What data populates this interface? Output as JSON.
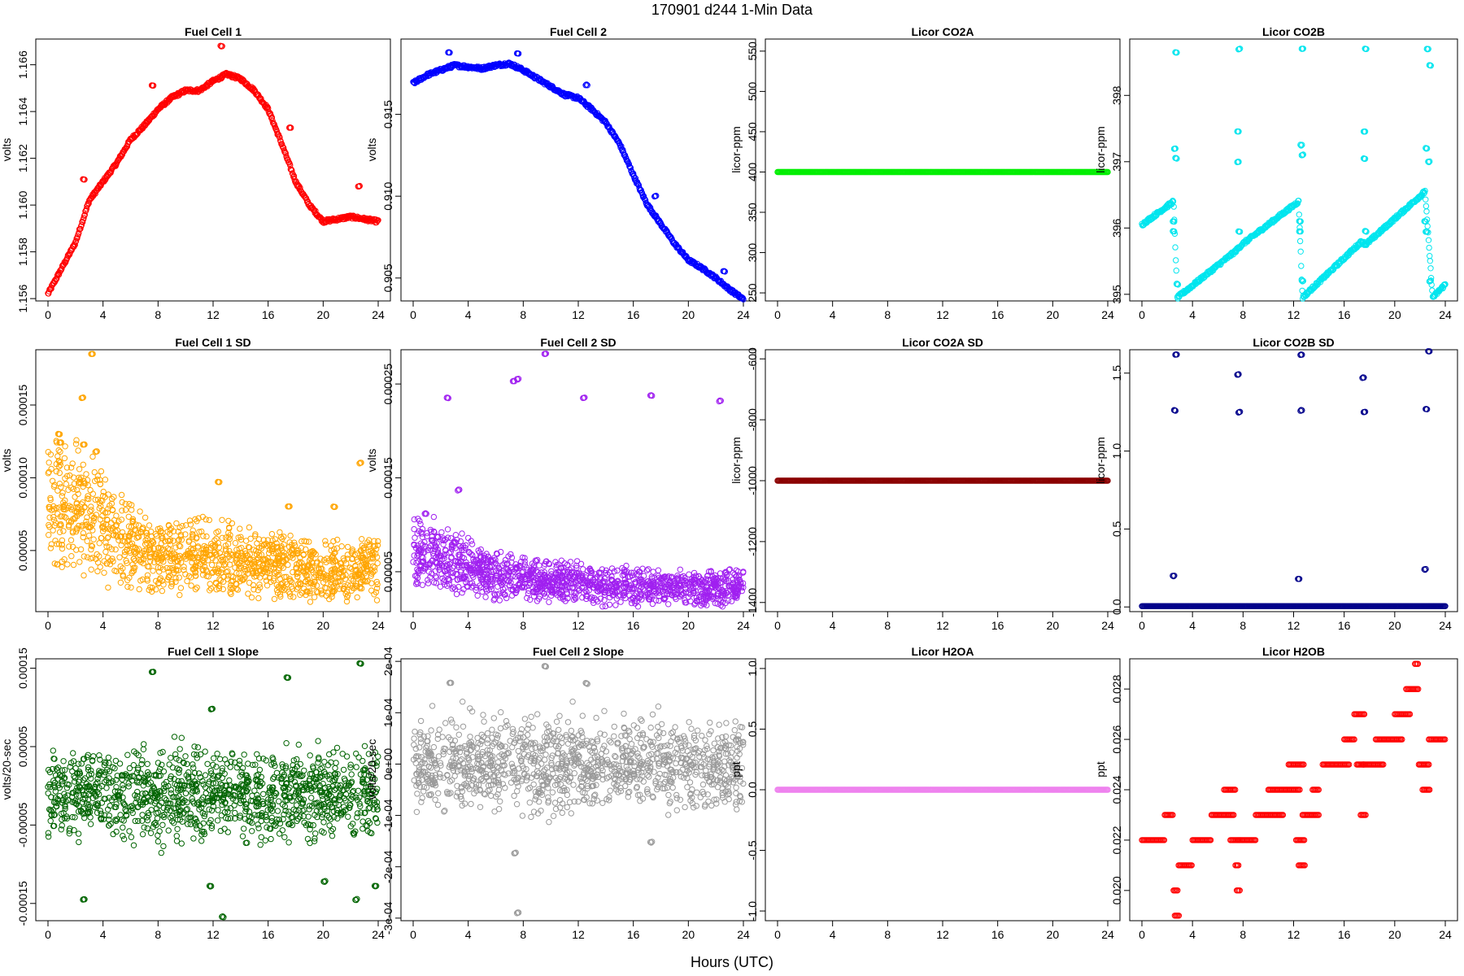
{
  "figure": {
    "title": "170901    d244    1-Min Data",
    "xlabel": "Hours (UTC)"
  },
  "chart_data": [
    {
      "type": "scatter",
      "title": "Fuel Cell 1",
      "ylabel": "volts",
      "color": "#ff0000",
      "xlim": [
        0,
        24
      ],
      "ylim": [
        1.1559,
        1.1671
      ],
      "xticks": [
        "0",
        "4",
        "8",
        "12",
        "16",
        "20",
        "24"
      ],
      "yticks": [
        "1.156",
        "1.158",
        "1.160",
        "1.162",
        "1.164",
        "1.166"
      ],
      "series": [
        {
          "x": [
            0,
            1,
            2,
            3,
            4,
            5,
            6,
            7,
            8,
            9,
            10,
            11,
            12,
            13,
            14,
            15,
            16,
            17,
            18,
            19,
            20,
            21,
            22,
            23,
            24
          ],
          "y": [
            1.1562,
            1.1573,
            1.1584,
            1.1602,
            1.161,
            1.1618,
            1.1628,
            1.1634,
            1.1641,
            1.1646,
            1.1649,
            1.1649,
            1.1653,
            1.1656,
            1.1654,
            1.1649,
            1.1641,
            1.1626,
            1.161,
            1.16,
            1.1593,
            1.1594,
            1.1595,
            1.1594,
            1.1593
          ]
        }
      ],
      "outliers": [
        {
          "x": 2.6,
          "y": 1.1611
        },
        {
          "x": 7.6,
          "y": 1.1651
        },
        {
          "x": 12.6,
          "y": 1.1668
        },
        {
          "x": 17.6,
          "y": 1.1633
        },
        {
          "x": 22.6,
          "y": 1.1608
        }
      ]
    },
    {
      "type": "scatter",
      "title": "Fuel Cell 2",
      "ylabel": "volts",
      "color": "#0000ff",
      "xlim": [
        0,
        24
      ],
      "ylim": [
        0.9036,
        0.9196
      ],
      "xticks": [
        "0",
        "4",
        "8",
        "12",
        "16",
        "20",
        "24"
      ],
      "yticks": [
        "0.905",
        "0.910",
        "0.915"
      ],
      "series": [
        {
          "x": [
            0,
            1,
            2,
            3,
            4,
            5,
            6,
            7,
            8,
            9,
            10,
            11,
            12,
            13,
            14,
            15,
            16,
            17,
            18,
            19,
            20,
            21,
            22,
            23,
            24
          ],
          "y": [
            0.9169,
            0.9174,
            0.9177,
            0.918,
            0.9179,
            0.9178,
            0.918,
            0.9181,
            0.9177,
            0.9172,
            0.9167,
            0.9162,
            0.916,
            0.9153,
            0.9145,
            0.9132,
            0.9113,
            0.9095,
            0.9083,
            0.9071,
            0.9061,
            0.9056,
            0.905,
            0.9043,
            0.9037
          ]
        }
      ],
      "outliers": [
        {
          "x": 2.6,
          "y": 0.9188
        },
        {
          "x": 7.6,
          "y": 0.9187
        },
        {
          "x": 12.6,
          "y": 0.9168
        },
        {
          "x": 17.6,
          "y": 0.91
        },
        {
          "x": 22.6,
          "y": 0.9054
        }
      ]
    },
    {
      "type": "scatter",
      "title": "Licor CO2A",
      "ylabel": "licor-ppm",
      "color": "#00ee00",
      "xlim": [
        0,
        24
      ],
      "ylim": [
        240,
        565
      ],
      "xticks": [
        "0",
        "4",
        "8",
        "12",
        "16",
        "20",
        "24"
      ],
      "yticks": [
        "250",
        "300",
        "350",
        "400",
        "450",
        "500",
        "550"
      ],
      "series": [
        {
          "x": [
            0,
            24
          ],
          "y": [
            400,
            400
          ]
        }
      ]
    },
    {
      "type": "scatter",
      "title": "Licor CO2B",
      "ylabel": "licor-ppm",
      "color": "#00e5ee",
      "xlim": [
        0,
        24
      ],
      "ylim": [
        394.9,
        398.85
      ],
      "xticks": [
        "0",
        "4",
        "8",
        "12",
        "16",
        "20",
        "24"
      ],
      "yticks": [
        "395",
        "396",
        "397",
        "398"
      ],
      "series": [
        {
          "x": [
            0,
            2.5,
            2.8,
            7.4,
            7.9,
            12.4,
            12.7,
            17.4,
            17.7,
            22.4,
            23.0,
            24.0
          ],
          "y": [
            396.05,
            396.4,
            394.95,
            395.65,
            395.75,
            396.4,
            394.95,
            395.8,
            395.75,
            396.55,
            394.95,
            395.15
          ]
        }
      ],
      "outliers": [
        {
          "x": 2.7,
          "y": 398.65
        },
        {
          "x": 7.7,
          "y": 398.7
        },
        {
          "x": 12.7,
          "y": 398.7
        },
        {
          "x": 17.7,
          "y": 398.7
        },
        {
          "x": 22.6,
          "y": 398.7
        },
        {
          "x": 22.8,
          "y": 398.45
        },
        {
          "x": 2.6,
          "y": 397.2
        },
        {
          "x": 2.7,
          "y": 397.05
        },
        {
          "x": 7.6,
          "y": 397.45
        },
        {
          "x": 7.6,
          "y": 397.0
        },
        {
          "x": 12.6,
          "y": 397.25
        },
        {
          "x": 12.7,
          "y": 397.1
        },
        {
          "x": 17.6,
          "y": 397.45
        },
        {
          "x": 17.6,
          "y": 397.05
        },
        {
          "x": 22.5,
          "y": 397.2
        },
        {
          "x": 22.7,
          "y": 397.0
        },
        {
          "x": 2.5,
          "y": 396.1
        },
        {
          "x": 2.5,
          "y": 395.95
        },
        {
          "x": 7.7,
          "y": 395.95
        },
        {
          "x": 12.5,
          "y": 396.1
        },
        {
          "x": 12.5,
          "y": 395.95
        },
        {
          "x": 17.7,
          "y": 395.95
        },
        {
          "x": 22.4,
          "y": 396.1
        },
        {
          "x": 22.5,
          "y": 395.95
        },
        {
          "x": 2.8,
          "y": 395.15
        },
        {
          "x": 12.7,
          "y": 395.2
        },
        {
          "x": 22.8,
          "y": 395.2
        }
      ]
    },
    {
      "type": "scatter",
      "title": "Fuel Cell 1 SD",
      "ylabel": "volts",
      "color": "#ffa500",
      "xlim": [
        0,
        24
      ],
      "ylim": [
        8e-06,
        0.000188
      ],
      "xticks": [
        "0",
        "4",
        "8",
        "12",
        "16",
        "20",
        "24"
      ],
      "yticks": [
        "0.00005",
        "0.00010",
        "0.00015"
      ],
      "series": [
        {
          "x": [
            0,
            2,
            4,
            6,
            8,
            10,
            12,
            14,
            16,
            18,
            20,
            22,
            24
          ],
          "y": [
            8.5e-05,
            8e-05,
            6.5e-05,
            5.2e-05,
            4.5e-05,
            4.6e-05,
            4.7e-05,
            4.2e-05,
            4e-05,
            3.8e-05,
            3.6e-05,
            3.7e-05,
            3.8e-05
          ]
        }
      ],
      "outliers": [
        {
          "x": 3.2,
          "y": 0.000185
        },
        {
          "x": 2.5,
          "y": 0.000155
        },
        {
          "x": 0.8,
          "y": 0.00013
        },
        {
          "x": 0.9,
          "y": 0.000124
        },
        {
          "x": 2.6,
          "y": 0.000123
        },
        {
          "x": 3.5,
          "y": 0.000118
        },
        {
          "x": 12.4,
          "y": 9.7e-05
        },
        {
          "x": 22.7,
          "y": 0.00011
        },
        {
          "x": 17.5,
          "y": 8e-05
        },
        {
          "x": 20.8,
          "y": 8e-05
        }
      ]
    },
    {
      "type": "scatter",
      "title": "Fuel Cell 2 SD",
      "ylabel": "volts",
      "color": "#a020f0",
      "xlim": [
        0,
        24
      ],
      "ylim": [
        7.5e-06,
        0.0002865
      ],
      "xticks": [
        "0",
        "4",
        "8",
        "12",
        "16",
        "20",
        "24"
      ],
      "yticks": [
        "0.00005",
        "0.00015",
        "0.00025"
      ],
      "series": [
        {
          "x": [
            0,
            2,
            4,
            6,
            8,
            10,
            12,
            14,
            16,
            18,
            20,
            22,
            24
          ],
          "y": [
            7e-05,
            6.5e-05,
            5.5e-05,
            4.5e-05,
            4.2e-05,
            4e-05,
            4e-05,
            3.5e-05,
            3.5e-05,
            3.3e-05,
            3.2e-05,
            3.3e-05,
            3.5e-05
          ]
        }
      ],
      "outliers": [
        {
          "x": 9.6,
          "y": 0.000282
        },
        {
          "x": 7.6,
          "y": 0.000255
        },
        {
          "x": 7.3,
          "y": 0.000253
        },
        {
          "x": 2.5,
          "y": 0.000235
        },
        {
          "x": 12.4,
          "y": 0.000235
        },
        {
          "x": 17.3,
          "y": 0.000238
        },
        {
          "x": 22.3,
          "y": 0.000232
        },
        {
          "x": 3.3,
          "y": 0.000137
        },
        {
          "x": 0.9,
          "y": 0.000112
        }
      ]
    },
    {
      "type": "scatter",
      "title": "Licor CO2A SD",
      "ylabel": "licor-ppm",
      "color": "#8b0000",
      "xlim": [
        0,
        24
      ],
      "ylim": [
        -1430,
        -570
      ],
      "xticks": [
        "0",
        "4",
        "8",
        "12",
        "16",
        "20",
        "24"
      ],
      "yticks": [
        "-1400",
        "-1200",
        "-1000",
        "-800",
        "-600"
      ],
      "series": [
        {
          "x": [
            0,
            24
          ],
          "y": [
            -1000,
            -1000
          ]
        }
      ]
    },
    {
      "type": "scatter",
      "title": "Licor CO2B SD",
      "ylabel": "licor-ppm",
      "color": "#00008b",
      "xlim": [
        0,
        24
      ],
      "ylim": [
        -0.03,
        1.65
      ],
      "xticks": [
        "0",
        "4",
        "8",
        "12",
        "16",
        "20",
        "24"
      ],
      "yticks": [
        "0.0",
        "0.5",
        "1.0",
        "1.5"
      ],
      "series": [
        {
          "x": [
            0,
            24
          ],
          "y": [
            0.005,
            0.005
          ]
        }
      ],
      "outliers": [
        {
          "x": 2.7,
          "y": 1.62
        },
        {
          "x": 2.6,
          "y": 1.26
        },
        {
          "x": 2.5,
          "y": 0.2
        },
        {
          "x": 7.6,
          "y": 1.49
        },
        {
          "x": 7.7,
          "y": 1.25
        },
        {
          "x": 12.6,
          "y": 1.62
        },
        {
          "x": 12.6,
          "y": 1.26
        },
        {
          "x": 12.4,
          "y": 0.18
        },
        {
          "x": 17.5,
          "y": 1.47
        },
        {
          "x": 17.6,
          "y": 1.25
        },
        {
          "x": 22.7,
          "y": 1.64
        },
        {
          "x": 22.5,
          "y": 1.27
        },
        {
          "x": 22.4,
          "y": 0.24
        }
      ]
    },
    {
      "type": "scatter",
      "title": "Fuel Cell 1 Slope",
      "ylabel": "volts/20-sec",
      "color": "#006400",
      "xlim": [
        0,
        24
      ],
      "ylim": [
        -0.000172,
        0.000162
      ],
      "xticks": [
        "0",
        "4",
        "8",
        "12",
        "16",
        "20",
        "24"
      ],
      "yticks": [
        "-0.00015",
        "-0.00005",
        "0.00005",
        "0.00015"
      ],
      "series": [
        {
          "x": [
            0,
            24
          ],
          "y": [
            -1e-05,
            -1e-05
          ]
        }
      ],
      "outliers": [
        {
          "x": 7.6,
          "y": 0.000145
        },
        {
          "x": 17.4,
          "y": 0.000138
        },
        {
          "x": 22.7,
          "y": 0.000156
        },
        {
          "x": 11.9,
          "y": 9.8e-05
        },
        {
          "x": 12.7,
          "y": -0.000167
        },
        {
          "x": 2.6,
          "y": -0.000145
        },
        {
          "x": 22.4,
          "y": -0.000145
        },
        {
          "x": 23.8,
          "y": -0.000128
        },
        {
          "x": 11.8,
          "y": -0.000128
        },
        {
          "x": 20.1,
          "y": -0.000122
        }
      ]
    },
    {
      "type": "scatter",
      "title": "Fuel Cell 2 Slope",
      "ylabel": "volts/20-sec",
      "color": "#9a9a9a",
      "xlim": [
        0,
        24
      ],
      "ylim": [
        -0.000305,
        0.000205
      ],
      "xticks": [
        "0",
        "4",
        "8",
        "12",
        "16",
        "20",
        "24"
      ],
      "yticks": [
        "-3e-04",
        "-2e-04",
        "-1e-04",
        "0e+00",
        "1e-04",
        "2e-04"
      ],
      "series": [
        {
          "x": [
            0,
            24
          ],
          "y": [
            0.0,
            0.0
          ]
        }
      ],
      "outliers": [
        {
          "x": 9.6,
          "y": 0.00019
        },
        {
          "x": 2.7,
          "y": 0.000158
        },
        {
          "x": 12.6,
          "y": 0.000157
        },
        {
          "x": 7.6,
          "y": -0.00029
        },
        {
          "x": 7.4,
          "y": -0.000173
        },
        {
          "x": 17.3,
          "y": -0.000152
        }
      ]
    },
    {
      "type": "scatter",
      "title": "Licor H2OA",
      "ylabel": "ppt",
      "color": "#ee82ee",
      "xlim": [
        0,
        24
      ],
      "ylim": [
        -1.08,
        1.08
      ],
      "xticks": [
        "0",
        "4",
        "8",
        "12",
        "16",
        "20",
        "24"
      ],
      "yticks": [
        "-1.0",
        "-0.5",
        "0.0",
        "0.5",
        "1.0"
      ],
      "series": [
        {
          "x": [
            0,
            24
          ],
          "y": [
            0,
            0
          ]
        }
      ]
    },
    {
      "type": "scatter",
      "title": "Licor H2OB",
      "ylabel": "ppt",
      "color": "#ff0000",
      "xlim": [
        0,
        24
      ],
      "ylim": [
        0.0188,
        0.0292
      ],
      "xticks": [
        "0",
        "4",
        "8",
        "12",
        "16",
        "20",
        "24"
      ],
      "yticks": [
        "0.020",
        "0.022",
        "0.024",
        "0.026",
        "0.028"
      ],
      "series": [
        {
          "name": "",
          "x": [
            0,
            2.5
          ],
          "y": [
            0.022,
            0.022
          ]
        }
      ],
      "steps": [
        [
          0.0,
          1.8,
          0.022
        ],
        [
          1.8,
          2.5,
          0.023
        ],
        [
          2.5,
          2.9,
          0.02
        ],
        [
          2.6,
          3.0,
          0.019
        ],
        [
          2.9,
          4.0,
          0.021
        ],
        [
          4.0,
          5.5,
          0.022
        ],
        [
          5.5,
          7.3,
          0.023
        ],
        [
          6.5,
          7.4,
          0.024
        ],
        [
          7.0,
          7.7,
          0.022
        ],
        [
          7.4,
          7.7,
          0.021
        ],
        [
          7.5,
          7.8,
          0.02
        ],
        [
          7.7,
          9.0,
          0.022
        ],
        [
          9.0,
          11.2,
          0.023
        ],
        [
          10.0,
          12.5,
          0.024
        ],
        [
          11.6,
          12.8,
          0.025
        ],
        [
          12.2,
          12.9,
          0.022
        ],
        [
          12.4,
          12.9,
          0.021
        ],
        [
          12.7,
          14.0,
          0.023
        ],
        [
          13.5,
          14.0,
          0.024
        ],
        [
          14.3,
          16.4,
          0.025
        ],
        [
          16.0,
          16.8,
          0.026
        ],
        [
          16.8,
          17.6,
          0.027
        ],
        [
          17.0,
          17.6,
          0.025
        ],
        [
          17.3,
          17.7,
          0.023
        ],
        [
          17.5,
          19.1,
          0.025
        ],
        [
          18.5,
          20.6,
          0.026
        ],
        [
          20.0,
          21.2,
          0.027
        ],
        [
          20.9,
          21.9,
          0.028
        ],
        [
          21.6,
          21.9,
          0.029
        ],
        [
          21.9,
          22.7,
          0.025
        ],
        [
          22.2,
          22.8,
          0.024
        ],
        [
          22.7,
          24.0,
          0.026
        ]
      ]
    }
  ]
}
